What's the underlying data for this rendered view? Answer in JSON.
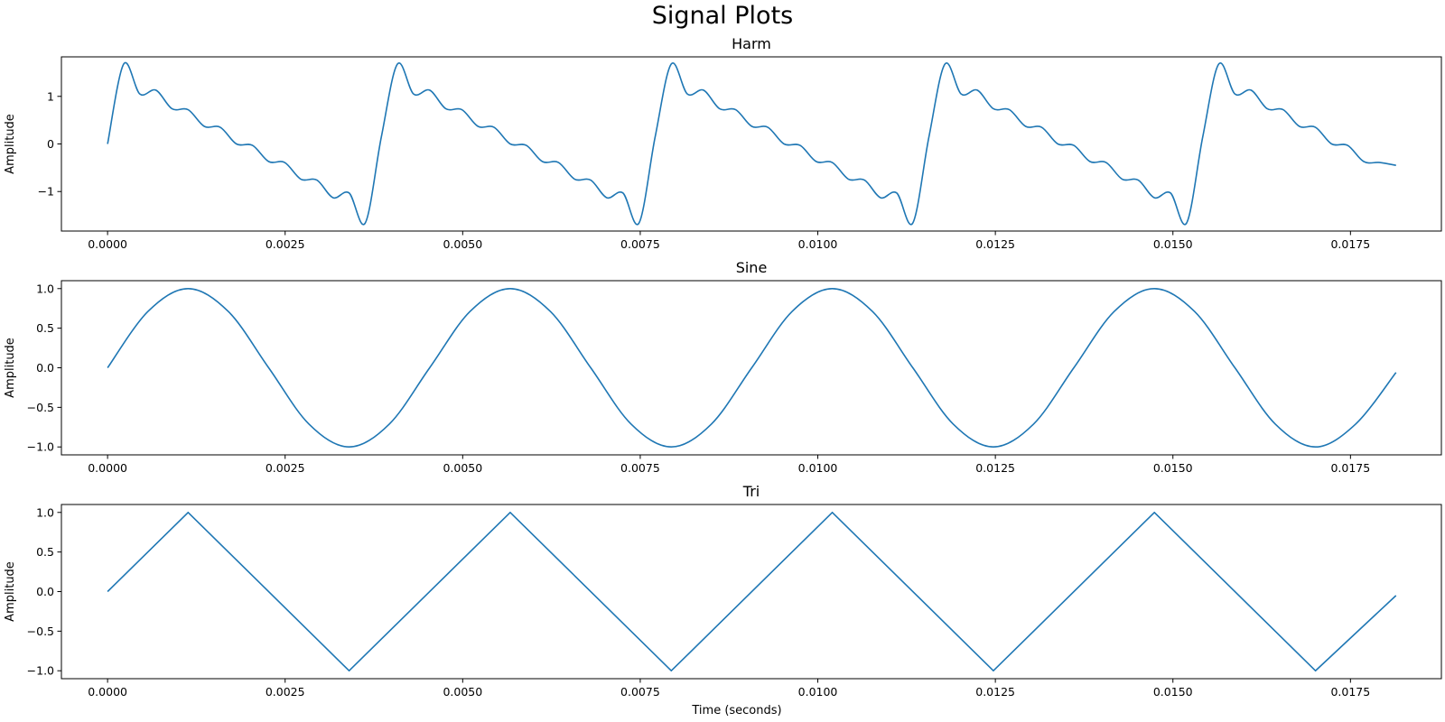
{
  "figure": {
    "title": "Signal Plots",
    "xlabel": "Time (seconds)"
  },
  "chart_data": [
    {
      "type": "line",
      "title": "Harm",
      "xlabel": "",
      "ylabel": "Amplitude",
      "xlim": [
        -0.00065,
        0.01878
      ],
      "ylim": [
        -1.83,
        1.83
      ],
      "xticks": [
        0.0,
        0.0025,
        0.005,
        0.0075,
        0.01,
        0.0125,
        0.015,
        0.0175
      ],
      "xtick_labels": [
        "0.0000",
        "0.0025",
        "0.0050",
        "0.0075",
        "0.0100",
        "0.0125",
        "0.0150",
        "0.0175"
      ],
      "yticks": [
        -1,
        0,
        1
      ],
      "ytick_labels": [
        "−1",
        "0",
        "1"
      ],
      "grid": false,
      "color": "#1f77b4",
      "series": [
        {
          "x": [
            0.0,
            0.000227,
            0.000454,
            0.00068,
            0.000907,
            0.001134,
            0.001361,
            0.001587,
            0.001814,
            0.002041,
            0.002268,
            0.002494,
            0.002721,
            0.002948,
            0.003175,
            0.003401,
            0.003628,
            0.003855,
            0.004082,
            0.004308,
            0.004535,
            0.004762,
            0.004989,
            0.005215,
            0.005442,
            0.005669,
            0.005896,
            0.006122,
            0.006349,
            0.006576,
            0.006803,
            0.007029,
            0.007256,
            0.007483,
            0.00771,
            0.007937,
            0.008163,
            0.00839,
            0.008617,
            0.008844,
            0.00907,
            0.009297,
            0.009524,
            0.009751,
            0.009977,
            0.010204,
            0.010431,
            0.010658,
            0.010884,
            0.011111,
            0.011338,
            0.011565,
            0.011791,
            0.012018,
            0.012245,
            0.012472,
            0.012698,
            0.012925,
            0.013152,
            0.013379,
            0.013605,
            0.013832,
            0.014059,
            0.014286,
            0.014512,
            0.014739,
            0.014966,
            0.015193,
            0.01542,
            0.015646,
            0.015873,
            0.0161,
            0.016327,
            0.016553,
            0.01678,
            0.017007,
            0.017234,
            0.01746,
            0.017687,
            0.017914,
            0.018141
          ],
          "y": [
            0.0,
            1.68,
            1.05,
            1.13,
            0.74,
            0.72,
            0.37,
            0.35,
            0.0,
            -0.03,
            -0.37,
            -0.39,
            -0.74,
            -0.76,
            -1.13,
            -1.03,
            -1.66,
            0.15,
            1.68,
            1.05,
            1.13,
            0.74,
            0.72,
            0.37,
            0.35,
            0.0,
            -0.03,
            -0.37,
            -0.39,
            -0.74,
            -0.76,
            -1.13,
            -1.03,
            -1.66,
            0.15,
            1.68,
            1.05,
            1.13,
            0.74,
            0.72,
            0.37,
            0.35,
            0.0,
            -0.03,
            -0.37,
            -0.39,
            -0.74,
            -0.76,
            -1.13,
            -1.03,
            -1.66,
            0.15,
            1.68,
            1.05,
            1.13,
            0.74,
            0.72,
            0.37,
            0.35,
            0.0,
            -0.03,
            -0.37,
            -0.39,
            -0.74,
            -0.76,
            -1.13,
            -1.03,
            -1.66,
            0.15,
            1.68,
            1.05,
            1.13,
            0.74,
            0.72,
            0.37,
            0.35,
            0.0,
            -0.03,
            -0.37,
            -0.39,
            -0.45
          ]
        }
      ]
    },
    {
      "type": "line",
      "title": "Sine",
      "xlabel": "",
      "ylabel": "Amplitude",
      "xlim": [
        -0.00065,
        0.01878
      ],
      "ylim": [
        -1.1,
        1.1
      ],
      "xticks": [
        0.0,
        0.0025,
        0.005,
        0.0075,
        0.01,
        0.0125,
        0.015,
        0.0175
      ],
      "xtick_labels": [
        "0.0000",
        "0.0025",
        "0.0050",
        "0.0075",
        "0.0100",
        "0.0125",
        "0.0150",
        "0.0175"
      ],
      "yticks": [
        -1.0,
        -0.5,
        0.0,
        0.5,
        1.0
      ],
      "ytick_labels": [
        "−1.0",
        "−0.5",
        "0.0",
        "0.5",
        "1.0"
      ],
      "grid": false,
      "color": "#1f77b4",
      "series": [
        {
          "x": [
            0.0,
            0.000567,
            0.001134,
            0.001701,
            0.002268,
            0.002834,
            0.003401,
            0.003968,
            0.004535,
            0.005102,
            0.005669,
            0.006236,
            0.006803,
            0.00737,
            0.007937,
            0.008503,
            0.00907,
            0.009637,
            0.010204,
            0.010771,
            0.011338,
            0.011905,
            0.012472,
            0.013039,
            0.013605,
            0.014172,
            0.014739,
            0.015306,
            0.015873,
            0.01644,
            0.017007,
            0.017574,
            0.018141
          ],
          "y": [
            0.0,
            0.71,
            1.0,
            0.71,
            0.0,
            -0.71,
            -1.0,
            -0.71,
            0.0,
            0.71,
            1.0,
            0.71,
            0.0,
            -0.71,
            -1.0,
            -0.71,
            0.0,
            0.71,
            1.0,
            0.71,
            0.0,
            -0.71,
            -1.0,
            -0.71,
            0.0,
            0.71,
            1.0,
            0.71,
            0.0,
            -0.71,
            -1.0,
            -0.71,
            -0.06
          ]
        }
      ]
    },
    {
      "type": "line",
      "title": "Tri",
      "xlabel": "",
      "ylabel": "Amplitude",
      "xlim": [
        -0.00065,
        0.01878
      ],
      "ylim": [
        -1.1,
        1.1
      ],
      "xticks": [
        0.0,
        0.0025,
        0.005,
        0.0075,
        0.01,
        0.0125,
        0.015,
        0.0175
      ],
      "xtick_labels": [
        "0.0000",
        "0.0025",
        "0.0050",
        "0.0075",
        "0.0100",
        "0.0125",
        "0.0150",
        "0.0175"
      ],
      "yticks": [
        -1.0,
        -0.5,
        0.0,
        0.5,
        1.0
      ],
      "ytick_labels": [
        "−1.0",
        "−0.5",
        "0.0",
        "0.5",
        "1.0"
      ],
      "grid": false,
      "color": "#1f77b4",
      "series": [
        {
          "x": [
            0.0,
            0.001134,
            0.003401,
            0.005669,
            0.007937,
            0.010204,
            0.012472,
            0.014739,
            0.017007,
            0.018141
          ],
          "y": [
            0.0,
            1.0,
            -1.0,
            1.0,
            -1.0,
            1.0,
            -1.0,
            1.0,
            -1.0,
            -0.05
          ]
        }
      ]
    }
  ]
}
